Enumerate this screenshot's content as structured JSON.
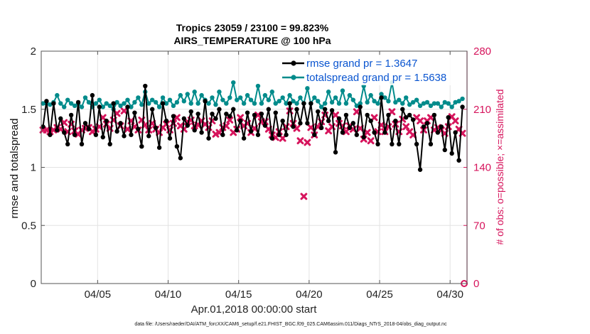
{
  "chart_data": {
    "type": "line",
    "title_line1": "Tropics 23059 / 23100 = 99.823%",
    "title_line2": "AIRS_TEMPERATURE @ 100 hPa",
    "ylabel": "rmse and totalspread",
    "ylabel_right": "# of obs: o=possible; ×=assimilated",
    "xlabel": "Apr.01,2018 00:00:00 start",
    "footer": "data file: /Users/raeder/DAI/ATM_forcXX/CAM6_setup/f.e21.FHIST_BGC.f09_025.CAM6assim.011/Diags_NTrS_2018-04/obs_diag_output.nc",
    "xlim": [
      1,
      31.2
    ],
    "ylim": [
      0,
      2
    ],
    "ylim_right": [
      0,
      280
    ],
    "x_ticks": [
      5,
      10,
      15,
      20,
      25,
      30
    ],
    "x_tick_labels": [
      "04/05",
      "04/10",
      "04/15",
      "04/20",
      "04/25",
      "04/30"
    ],
    "y_ticks": [
      0,
      0.5,
      1,
      1.5,
      2
    ],
    "y_tick_labels": [
      "0",
      "0.5",
      "1",
      "1.5",
      "2"
    ],
    "y_right_ticks": [
      0,
      70,
      140,
      210,
      280
    ],
    "y_right_tick_labels": [
      "0",
      "70",
      "140",
      "210",
      "280"
    ],
    "colors": {
      "rmse": "#000000",
      "spread": "#008b8b",
      "obs": "#d6145c",
      "grid": "#e3e3e3",
      "axis": "#555555"
    },
    "x": [
      1.125,
      1.375,
      1.625,
      1.875,
      2.125,
      2.375,
      2.625,
      2.875,
      3.125,
      3.375,
      3.625,
      3.875,
      4.125,
      4.375,
      4.625,
      4.875,
      5.125,
      5.375,
      5.625,
      5.875,
      6.125,
      6.375,
      6.625,
      6.875,
      7.125,
      7.375,
      7.625,
      7.875,
      8.125,
      8.375,
      8.625,
      8.875,
      9.125,
      9.375,
      9.625,
      9.875,
      10.125,
      10.375,
      10.625,
      10.875,
      11.125,
      11.375,
      11.625,
      11.875,
      12.125,
      12.375,
      12.625,
      12.875,
      13.125,
      13.375,
      13.625,
      13.875,
      14.125,
      14.375,
      14.625,
      14.875,
      15.125,
      15.375,
      15.625,
      15.875,
      16.125,
      16.375,
      16.625,
      16.875,
      17.125,
      17.375,
      17.625,
      17.875,
      18.125,
      18.375,
      18.625,
      18.875,
      19.125,
      19.375,
      19.625,
      19.875,
      20.125,
      20.375,
      20.625,
      20.875,
      21.125,
      21.375,
      21.625,
      21.875,
      22.125,
      22.375,
      22.625,
      22.875,
      23.125,
      23.375,
      23.625,
      23.875,
      24.125,
      24.375,
      24.625,
      24.875,
      25.125,
      25.375,
      25.625,
      25.875,
      26.125,
      26.375,
      26.625,
      26.875,
      27.125,
      27.375,
      27.625,
      27.875,
      28.125,
      28.375,
      28.625,
      28.875,
      29.125,
      29.375,
      29.625,
      29.875,
      30.125,
      30.375,
      30.625,
      30.875
    ],
    "series": [
      {
        "name": "rmse grand pr = 1.3647",
        "axis": "left",
        "values": [
          1.35,
          1.57,
          1.28,
          1.55,
          1.32,
          1.42,
          1.3,
          1.2,
          1.45,
          1.28,
          1.56,
          1.2,
          1.38,
          1.33,
          1.62,
          1.28,
          1.52,
          1.26,
          1.4,
          1.2,
          1.55,
          1.31,
          1.38,
          1.27,
          1.52,
          1.28,
          1.47,
          1.33,
          1.18,
          1.7,
          1.27,
          1.5,
          1.34,
          1.17,
          1.55,
          1.4,
          1.25,
          1.44,
          1.18,
          1.08,
          1.42,
          1.36,
          1.48,
          1.32,
          1.46,
          1.3,
          1.57,
          1.25,
          1.46,
          1.42,
          1.5,
          1.28,
          1.46,
          1.44,
          1.5,
          1.32,
          1.4,
          1.25,
          1.47,
          1.31,
          1.45,
          1.28,
          1.46,
          1.36,
          1.5,
          1.25,
          1.47,
          1.28,
          1.4,
          1.28,
          1.55,
          1.35,
          1.5,
          1.38,
          1.55,
          1.38,
          1.55,
          1.28,
          1.48,
          1.34,
          1.5,
          1.4,
          1.49,
          1.13,
          1.42,
          1.3,
          1.45,
          1.34,
          1.38,
          1.28,
          1.52,
          1.26,
          1.45,
          1.4,
          1.3,
          1.2,
          1.6,
          1.3,
          1.45,
          1.2,
          1.4,
          1.2,
          1.5,
          1.43,
          1.45,
          1.41,
          1.2,
          0.98,
          1.35,
          1.38,
          1.2,
          1.45,
          1.3,
          1.35,
          1.15,
          1.43,
          1.12,
          1.3,
          1.06,
          1.52
        ]
      },
      {
        "name": "totalspread grand pr = 1.5638",
        "axis": "left",
        "values": [
          1.55,
          1.55,
          1.54,
          1.56,
          1.62,
          1.55,
          1.52,
          1.58,
          1.55,
          1.53,
          1.55,
          1.52,
          1.6,
          1.56,
          1.52,
          1.55,
          1.58,
          1.52,
          1.55,
          1.53,
          1.5,
          1.56,
          1.53,
          1.55,
          1.58,
          1.52,
          1.56,
          1.6,
          1.54,
          1.65,
          1.55,
          1.58,
          1.56,
          1.52,
          1.6,
          1.55,
          1.58,
          1.53,
          1.56,
          1.62,
          1.57,
          1.63,
          1.55,
          1.65,
          1.55,
          1.62,
          1.58,
          1.55,
          1.6,
          1.54,
          1.65,
          1.58,
          1.55,
          1.6,
          1.73,
          1.58,
          1.6,
          1.55,
          1.62,
          1.58,
          1.55,
          1.7,
          1.55,
          1.62,
          1.58,
          1.65,
          1.55,
          1.57,
          1.6,
          1.55,
          1.62,
          1.57,
          1.55,
          1.6,
          1.55,
          1.68,
          1.55,
          1.6,
          1.57,
          1.52,
          1.55,
          1.65,
          1.56,
          1.6,
          1.55,
          1.66,
          1.55,
          1.62,
          1.58,
          1.53,
          1.55,
          1.7,
          1.56,
          1.62,
          1.57,
          1.55,
          1.63,
          1.6,
          1.57,
          1.73,
          1.56,
          1.58,
          1.55,
          1.6,
          1.54,
          1.56,
          1.58,
          1.53,
          1.55,
          1.56,
          1.53,
          1.55,
          1.55,
          1.52,
          1.56,
          1.55,
          1.52,
          1.56,
          1.57,
          1.59
        ]
      }
    ],
    "obs_assimilated": {
      "name": "# of obs assimilated",
      "axis": "right",
      "values": [
        185,
        185,
        183,
        185,
        188,
        186,
        194,
        183,
        192,
        184,
        180,
        185,
        187,
        188,
        183,
        186,
        189,
        200,
        192,
        187,
        197,
        205,
        190,
        208,
        186,
        196,
        189,
        185,
        197,
        191,
        185,
        193,
        186,
        182,
        188,
        192,
        185,
        193,
        200,
        190,
        186,
        195,
        197,
        190,
        191,
        196,
        192,
        188,
        196,
        180,
        182,
        188,
        190,
        197,
        182,
        186,
        200,
        190,
        193,
        182,
        187,
        203,
        195,
        195,
        186,
        179,
        176,
        183,
        175,
        189,
        208,
        193,
        187,
        172,
        105,
        170,
        188,
        179,
        189,
        195,
        203,
        184,
        189,
        203,
        193,
        190,
        183,
        190,
        186,
        207,
        187,
        174,
        182,
        172,
        200,
        183,
        191,
        183,
        189,
        207,
        192,
        183,
        198,
        189,
        183,
        179,
        200,
        196,
        185,
        196,
        200,
        185,
        188,
        185,
        181,
        189,
        201,
        196,
        186,
        181
      ]
    },
    "obs_possible_outlier": {
      "x": 31.0,
      "y": 0
    }
  }
}
